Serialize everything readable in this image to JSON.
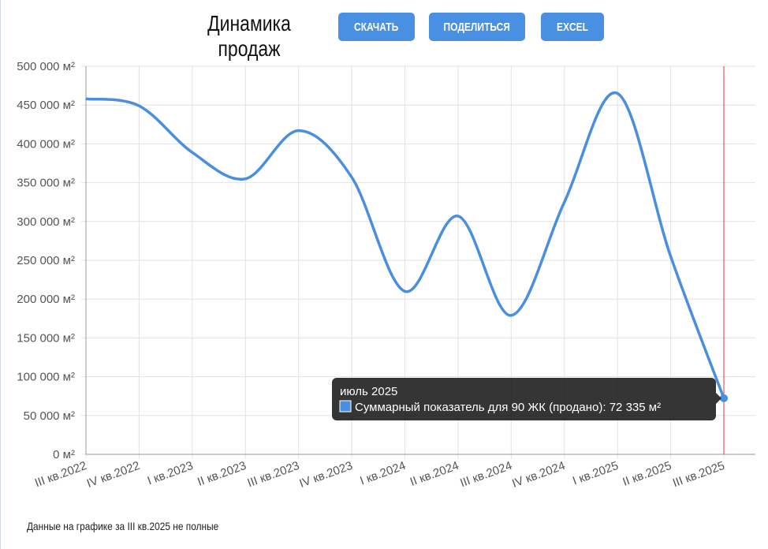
{
  "header": {
    "title": "Динамика продаж",
    "buttons": [
      "СКАЧАТЬ",
      "ПОДЕЛИТЬСЯ",
      "EXCEL"
    ]
  },
  "chart_data": {
    "type": "line",
    "categories": [
      "III кв.2022",
      "IV кв.2022",
      "I кв.2023",
      "II кв.2023",
      "III кв.2023",
      "IV кв.2023",
      "I кв.2024",
      "II кв.2024",
      "III кв.2024",
      "IV кв.2024",
      "I кв.2025",
      "II кв.2025",
      "III кв.2025"
    ],
    "series": [
      {
        "name": "Суммарный показатель для 90 ЖК (продано)",
        "color": "#4a8fdf",
        "values": [
          458000,
          449000,
          389000,
          355000,
          417000,
          357000,
          210000,
          307000,
          179000,
          325000,
          465000,
          255000,
          72335
        ]
      }
    ],
    "ylim": [
      0,
      500000
    ],
    "yticks": [
      {
        "value": 0,
        "label": "0 м²"
      },
      {
        "value": 50000,
        "label": "50 000 м²"
      },
      {
        "value": 100000,
        "label": "100 000 м²"
      },
      {
        "value": 150000,
        "label": "150 000 м²"
      },
      {
        "value": 200000,
        "label": "200 000 м²"
      },
      {
        "value": 250000,
        "label": "250 000 м²"
      },
      {
        "value": 300000,
        "label": "300 000 м²"
      },
      {
        "value": 350000,
        "label": "350 000 м²"
      },
      {
        "value": 400000,
        "label": "400 000 м²"
      },
      {
        "value": 450000,
        "label": "450 000 м²"
      },
      {
        "value": 500000,
        "label": "500 000 м²"
      }
    ],
    "grid": true,
    "tooltip": {
      "title": "июль 2025",
      "text": "Суммарный показатель для 90 ЖК (продано): 72 335 м²"
    }
  },
  "footnote": "Данные на графике за III кв.2025 не полные"
}
